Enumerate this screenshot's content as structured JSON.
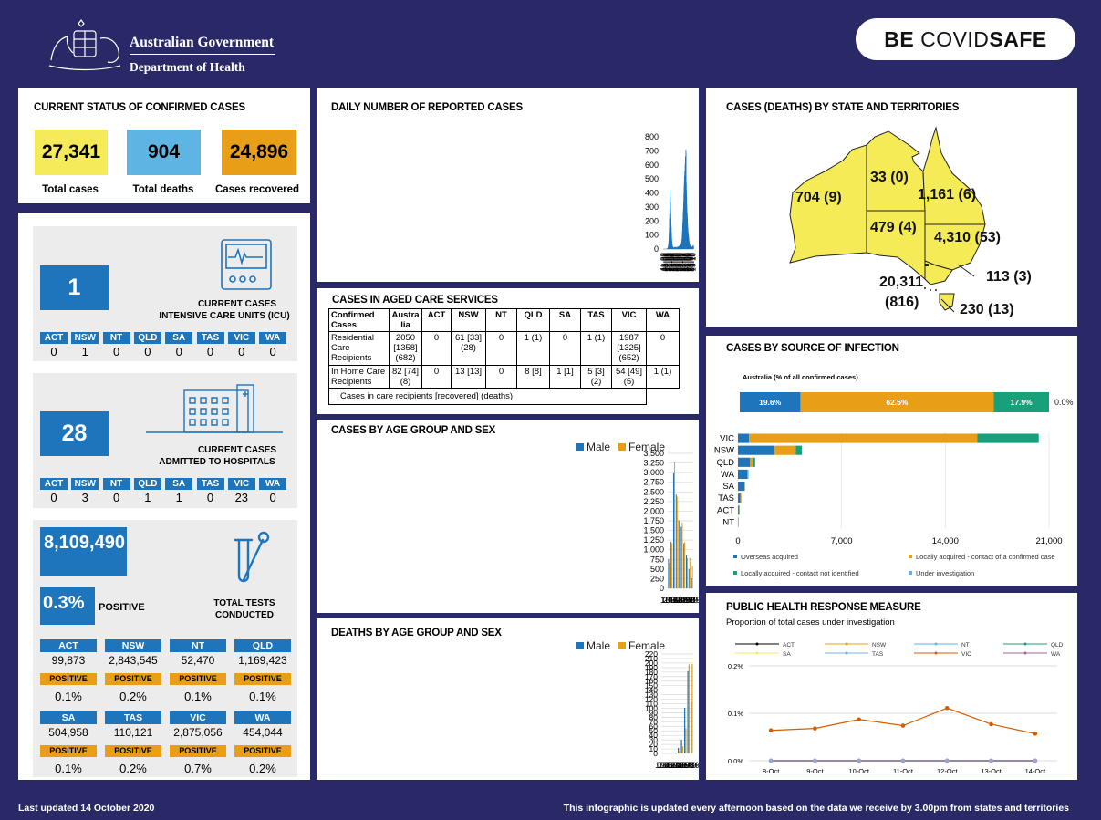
{
  "header": {
    "gov": "Australian Government",
    "dept": "Department of Health",
    "badge_be": "BE ",
    "badge_covid": "COVID",
    "badge_safe": "SAFE"
  },
  "status": {
    "title": "CURRENT STATUS OF CONFIRMED CASES",
    "total_cases": "27,341",
    "total_cases_label": "Total cases",
    "total_deaths": "904",
    "total_deaths_label": "Total deaths",
    "recovered": "24,896",
    "recovered_label": "Cases recovered"
  },
  "icu": {
    "value": "1",
    "label1": "CURRENT CASES",
    "label2": "INTENSIVE CARE UNITS (ICU)",
    "states": [
      {
        "code": "ACT",
        "value": "0"
      },
      {
        "code": "NSW",
        "value": "1"
      },
      {
        "code": "NT",
        "value": "0"
      },
      {
        "code": "QLD",
        "value": "0"
      },
      {
        "code": "SA",
        "value": "0"
      },
      {
        "code": "TAS",
        "value": "0"
      },
      {
        "code": "VIC",
        "value": "0"
      },
      {
        "code": "WA",
        "value": "0"
      }
    ]
  },
  "hosp": {
    "value": "28",
    "label1": "CURRENT CASES",
    "label2": "ADMITTED TO HOSPITALS",
    "states": [
      {
        "code": "ACT",
        "value": "0"
      },
      {
        "code": "NSW",
        "value": "3"
      },
      {
        "code": "NT",
        "value": "0"
      },
      {
        "code": "QLD",
        "value": "1"
      },
      {
        "code": "SA",
        "value": "1"
      },
      {
        "code": "TAS",
        "value": "0"
      },
      {
        "code": "VIC",
        "value": "23"
      },
      {
        "code": "WA",
        "value": "0"
      }
    ]
  },
  "tests": {
    "total": "8,109,490",
    "positive_pct": "0.3%",
    "positive_label": "POSITIVE",
    "label1": "TOTAL TESTS",
    "label2": "CONDUCTED",
    "states": [
      {
        "code": "ACT",
        "value": "99,873",
        "pos_label": "POSITIVE",
        "pct": "0.1%"
      },
      {
        "code": "NSW",
        "value": "2,843,545",
        "pos_label": "POSITIVE",
        "pct": "0.2%"
      },
      {
        "code": "NT",
        "value": "52,470",
        "pos_label": "POSITIVE",
        "pct": "0.1%"
      },
      {
        "code": "QLD",
        "value": "1,169,423",
        "pos_label": "POSITIVE",
        "pct": "0.1%"
      },
      {
        "code": "SA",
        "value": "504,958",
        "pos_label": "POSITIVE",
        "pct": "0.1%"
      },
      {
        "code": "TAS",
        "value": "110,121",
        "pos_label": "POSITIVE",
        "pct": "0.2%"
      },
      {
        "code": "VIC",
        "value": "2,875,056",
        "pos_label": "POSITIVE",
        "pct": "0.7%"
      },
      {
        "code": "WA",
        "value": "454,044",
        "pos_label": "POSITIVE",
        "pct": "0.2%"
      }
    ]
  },
  "aged": {
    "title": "CASES IN AGED CARE SERVICES",
    "headers": [
      "Confirmed Cases",
      "Austra lia",
      "ACT",
      "NSW",
      "NT",
      "QLD",
      "SA",
      "TAS",
      "VIC",
      "WA"
    ],
    "row1": [
      "Residential Care Recipients",
      "2050 [1358] (682)",
      "0",
      "61 [33] (28)",
      "0",
      "1 (1)",
      "0",
      "1 (1)",
      "1987 [1325] (652)",
      "0"
    ],
    "row2": [
      "In Home Care Recipients",
      "82 [74] (8)",
      "0",
      "13 [13]",
      "0",
      "8 [8]",
      "1 [1]",
      "5 [3] (2)",
      "54 [49] (5)",
      "1 (1)"
    ],
    "note": "Cases in care recipients [recovered] (deaths)"
  },
  "map": {
    "title": "CASES (DEATHS) BY STATE AND TERRITORIES",
    "labels": {
      "wa": "704 (9)",
      "nt": "33 (0)",
      "qld": "1,161 (6)",
      "sa": "479 (4)",
      "nsw": "4,310 (53)",
      "act": "113 (3)",
      "vic1": "20,311",
      "vic2": "(816)",
      "tas": "230 (13)"
    }
  },
  "footer": {
    "updated": "Last updated 14 October 2020",
    "note": "This infographic is updated every afternoon based on the data we receive by 3.00pm from states and territories"
  },
  "colors": {
    "navy": "#2a2967",
    "blue": "#1f75bc",
    "orange": "#e89e17",
    "yellow": "#f5eb5a",
    "lightblue": "#5eb5e3",
    "green": "#17a07a",
    "map": "#f4eb57"
  },
  "chart_data": [
    {
      "id": "daily",
      "type": "bar",
      "title": "DAILY NUMBER OF REPORTED CASES",
      "ylim": [
        0,
        800
      ],
      "yticks": [
        0,
        100,
        200,
        300,
        400,
        500,
        600,
        700,
        800
      ],
      "x_tick_labels": [
        "11-02",
        "18-02",
        "25-02",
        "03-03",
        "10-03",
        "17-03",
        "24-03",
        "31-03",
        "07-04",
        "14-04",
        "21-04",
        "28-04",
        "05-05",
        "12-05",
        "19-05",
        "26-05",
        "02-06",
        "09-06",
        "16-06",
        "23-06",
        "30-06",
        "07-07",
        "14-07",
        "21-07",
        "28-07",
        "04-08",
        "11-08",
        "18-08",
        "25-08",
        "01-09",
        "08-09",
        "15-09",
        "22-09",
        "29-09",
        "06-10",
        "13-10"
      ],
      "values": [
        0,
        0,
        0,
        0,
        0,
        0,
        0,
        0,
        0,
        0,
        0,
        0,
        0,
        0,
        0,
        0,
        0,
        0,
        0,
        0,
        0,
        0,
        0,
        0,
        0,
        0,
        0,
        0,
        1,
        2,
        3,
        3,
        2,
        4,
        5,
        6,
        8,
        10,
        12,
        14,
        18,
        22,
        28,
        35,
        45,
        60,
        75,
        95,
        120,
        150,
        180,
        215,
        250,
        290,
        350,
        420,
        330,
        370,
        330,
        300,
        280,
        250,
        220,
        190,
        170,
        150,
        120,
        100,
        80,
        65,
        55,
        45,
        35,
        30,
        25,
        20,
        18,
        20,
        16,
        14,
        12,
        14,
        10,
        9,
        11,
        8,
        9,
        7,
        8,
        7,
        9,
        8,
        10,
        12,
        11,
        14,
        13,
        16,
        12,
        11,
        10,
        12,
        9,
        8,
        14,
        11,
        10,
        9,
        8,
        7,
        9,
        8,
        12,
        10,
        15,
        14,
        12,
        11,
        13,
        14,
        16,
        15,
        13,
        12,
        14,
        18,
        16,
        14,
        16,
        20,
        19,
        18,
        15,
        17,
        20,
        22,
        18,
        16,
        21,
        24,
        27,
        26,
        24,
        22,
        23,
        25,
        30,
        35,
        33,
        38,
        43,
        40,
        48,
        55,
        64,
        70,
        77,
        90,
        105,
        125,
        140,
        165,
        180,
        200,
        215,
        240,
        260,
        280,
        300,
        320,
        340,
        380,
        400,
        430,
        450,
        480,
        520,
        480,
        420,
        550,
        560,
        500,
        600,
        620,
        660,
        610,
        480,
        520,
        710,
        690,
        480,
        470,
        420,
        390,
        370,
        320,
        290,
        250,
        260,
        250,
        210,
        220,
        180,
        170,
        140,
        150,
        130,
        110,
        115,
        95,
        100,
        85,
        80,
        70,
        60,
        55,
        48,
        41,
        45,
        38,
        31,
        30,
        28,
        24,
        20,
        18,
        15,
        16,
        14,
        12,
        10,
        11,
        8,
        12,
        9,
        10,
        14,
        11,
        15,
        13,
        12,
        16,
        18,
        19,
        17,
        15,
        22,
        20,
        18,
        23,
        25,
        22,
        24
      ],
      "color": "#1f75bc"
    },
    {
      "id": "age",
      "type": "bar",
      "title": "CASES BY AGE GROUP AND SEX",
      "categories": [
        "0-9",
        "10-19",
        "20-29",
        "30-39",
        "40-49",
        "50-59",
        "60-69",
        "70-79",
        "80-89",
        "90+"
      ],
      "ylim": [
        0,
        3500
      ],
      "yticks": [
        0,
        250,
        500,
        750,
        1000,
        1250,
        1500,
        1750,
        2000,
        2250,
        2500,
        2750,
        3000,
        3250,
        3500
      ],
      "ytick_labels": [
        "0",
        "250",
        "500",
        "750",
        "1,000",
        "1,250",
        "1,500",
        "1,750",
        "2,000",
        "2,250",
        "2,500",
        "2,750",
        "3,000",
        "3,250",
        "3,500"
      ],
      "series": [
        {
          "name": "Male",
          "values": [
            760,
            1210,
            2980,
            2430,
            1760,
            1600,
            1170,
            860,
            500,
            260
          ],
          "color": "#1f75bc"
        },
        {
          "name": "Female",
          "values": [
            660,
            1170,
            3270,
            2370,
            1760,
            1710,
            1200,
            780,
            790,
            580
          ],
          "color": "#e89e17"
        }
      ]
    },
    {
      "id": "deaths",
      "type": "bar",
      "title": "DEATHS BY AGE GROUP AND SEX",
      "categories": [
        "0-9",
        "10-19",
        "20-29",
        "30-39",
        "40-49",
        "50-59",
        "60-69",
        "70-79",
        "80-89",
        "90+"
      ],
      "ylim": [
        0,
        220
      ],
      "yticks": [
        0,
        10,
        20,
        30,
        40,
        50,
        60,
        70,
        80,
        90,
        100,
        110,
        120,
        130,
        140,
        150,
        160,
        170,
        180,
        190,
        200,
        210,
        220
      ],
      "series": [
        {
          "name": "Male",
          "values": [
            0,
            0,
            0,
            1,
            2,
            12,
            30,
            101,
            182,
            114
          ],
          "color": "#1f75bc"
        },
        {
          "name": "Female",
          "values": [
            0,
            0,
            0,
            0,
            1,
            5,
            16,
            56,
            197,
            198
          ],
          "color": "#e89e17"
        }
      ]
    },
    {
      "id": "source_pct",
      "type": "bar",
      "title": "CASES BY SOURCE OF INFECTION",
      "subtitle": "Australia (% of all confirmed cases)",
      "series": [
        {
          "name": "Overseas acquired",
          "value": 19.6,
          "label": "19.6%",
          "color": "#1f75bc"
        },
        {
          "name": "Locally acquired - contact of a confirmed case",
          "value": 62.5,
          "label": "62.5%",
          "color": "#e89e17"
        },
        {
          "name": "Locally acquired - contact not identified",
          "value": 17.9,
          "label": "17.9%",
          "color": "#17a07a"
        },
        {
          "name": "Under investigation",
          "value": 0.0,
          "label": "0.0%",
          "color": "#5eb5e3"
        }
      ]
    },
    {
      "id": "source_state",
      "type": "bar",
      "categories": [
        "VIC",
        "NSW",
        "QLD",
        "WA",
        "SA",
        "TAS",
        "ACT",
        "NT"
      ],
      "xlim": [
        0,
        21000
      ],
      "xticks": [
        0,
        7000,
        14000,
        21000
      ],
      "xtick_labels": [
        "0",
        "7,000",
        "14,000",
        "21,000"
      ],
      "series": [
        {
          "name": "Overseas acquired",
          "values": [
            750,
            2450,
            820,
            640,
            445,
            155,
            55,
            30
          ],
          "color": "#1f75bc"
        },
        {
          "name": "Locally acquired - contact of a confirmed case",
          "values": [
            15400,
            1450,
            220,
            40,
            20,
            70,
            25,
            2
          ],
          "color": "#e89e17"
        },
        {
          "name": "Locally acquired - contact not identified",
          "values": [
            4150,
            410,
            120,
            24,
            14,
            5,
            33,
            1
          ],
          "color": "#17a07a"
        },
        {
          "name": "Under investigation",
          "values": [
            11,
            0,
            1,
            0,
            0,
            0,
            0,
            0
          ],
          "color": "#5eb5e3"
        }
      ],
      "legend": [
        "Overseas acquired",
        "Locally acquired - contact of a confirmed case",
        "Locally acquired - contact not identified",
        "Under investigation"
      ]
    },
    {
      "id": "response",
      "type": "line",
      "title": "PUBLIC HEALTH RESPONSE MEASURE",
      "subtitle": "Proportion of total cases under investigation",
      "x": [
        "8-Oct",
        "9-Oct",
        "10-Oct",
        "11-Oct",
        "12-Oct",
        "13-Oct",
        "14-Oct"
      ],
      "ylim": [
        0,
        0.2
      ],
      "yticks": [
        0,
        0.1,
        0.2
      ],
      "ytick_labels": [
        "0.0%",
        "0.1%",
        "0.2%"
      ],
      "series": [
        {
          "name": "ACT",
          "values": [
            0,
            0,
            0,
            0,
            0,
            0,
            0
          ],
          "color": "#000000"
        },
        {
          "name": "NSW",
          "values": [
            0,
            0,
            0,
            0,
            0,
            0,
            0
          ],
          "color": "#e89e17"
        },
        {
          "name": "NT",
          "values": [
            0,
            0,
            0,
            0,
            0,
            0,
            0
          ],
          "color": "#5eb5e3"
        },
        {
          "name": "QLD",
          "values": [
            0,
            0,
            0,
            0,
            0,
            0,
            0
          ],
          "color": "#17a07a"
        },
        {
          "name": "SA",
          "values": [
            0,
            0,
            0,
            0,
            0,
            0,
            0
          ],
          "color": "#f5eb5a"
        },
        {
          "name": "TAS",
          "values": [
            0,
            0,
            0,
            0,
            0,
            0,
            0
          ],
          "color": "#7fb0d8"
        },
        {
          "name": "VIC",
          "values": [
            0.064,
            0.068,
            0.087,
            0.074,
            0.111,
            0.077,
            0.057
          ],
          "color": "#d55e00"
        },
        {
          "name": "WA",
          "values": [
            0,
            0,
            0,
            0,
            0,
            0,
            0
          ],
          "color": "#9b6aa5"
        }
      ]
    }
  ]
}
